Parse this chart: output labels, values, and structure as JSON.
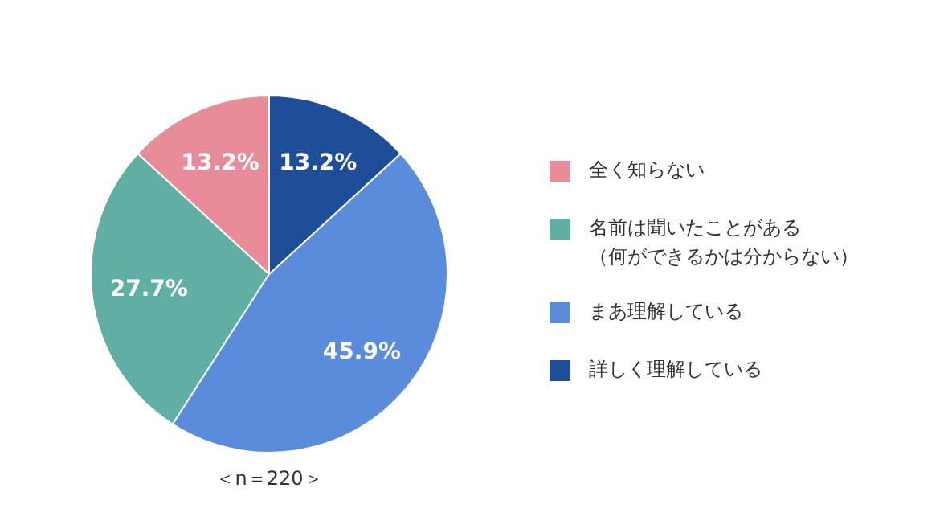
{
  "chart_data": {
    "type": "pie",
    "categories": [
      "全く知らない",
      "名前は聞いたことがある（何ができるかは分からない）",
      "まあ理解している",
      "詳しく理解している"
    ],
    "values": [
      13.2,
      27.7,
      45.9,
      13.2
    ],
    "colors": [
      "#e98c9a",
      "#5fafa5",
      "#5b8cdc",
      "#1e4e9a"
    ],
    "value_labels": [
      "13.2%",
      "27.7%",
      "45.9%",
      "13.2%"
    ],
    "annotations": [
      "＜n＝220＞"
    ],
    "legend": "right"
  }
}
